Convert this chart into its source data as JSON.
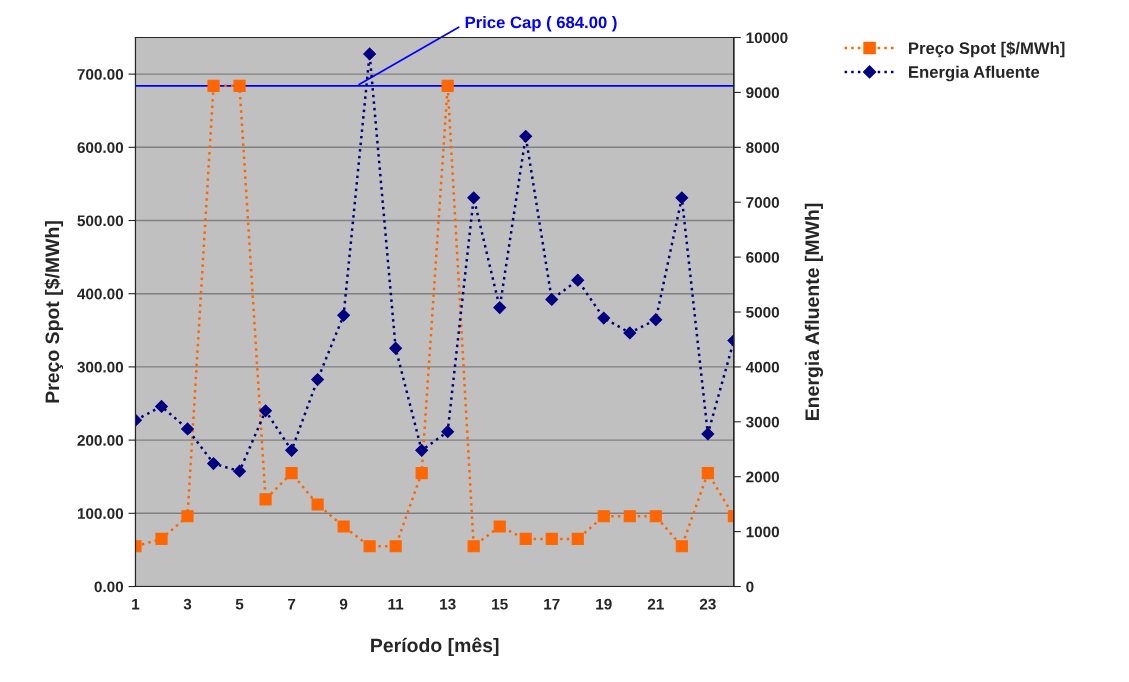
{
  "chart_data": {
    "type": "line",
    "xlabel": "Período [mês]",
    "ylabel": "Preço Spot [$/MWh]",
    "y2label": "Energia Afluente [MWh]",
    "categories": [
      "1",
      null,
      "3",
      null,
      "5",
      null,
      "7",
      null,
      "9",
      null,
      "11",
      null,
      "13",
      null,
      "15",
      null,
      "17",
      null,
      "19",
      null,
      "21",
      null,
      "23",
      null
    ],
    "series": [
      {
        "name": "Preço Spot [$/MWh]",
        "color": "#ff6600",
        "marker": "square",
        "line_style": "dotted",
        "values": [
          55,
          65,
          96,
          684,
          684,
          119,
          155,
          112,
          82,
          55,
          55,
          155,
          684,
          55,
          82,
          65,
          65,
          65,
          96,
          96,
          96,
          55,
          155,
          96
        ]
      },
      {
        "name": "Energia Afluente",
        "color": "#000080",
        "marker": "diamond",
        "line_style": "dotted",
        "axis": "y2",
        "values": [
          3030,
          3280,
          2870,
          2240,
          2100,
          3200,
          2480,
          3770,
          4940,
          9700,
          4340,
          2480,
          2820,
          7080,
          5080,
          8200,
          5230,
          5580,
          4890,
          4620,
          4860,
          7080,
          2780,
          4480
        ]
      }
    ],
    "ylim": [
      0,
      750
    ],
    "yticks": [
      {
        "value": 0,
        "label": "0.00"
      },
      {
        "value": 100,
        "label": "100.00"
      },
      {
        "value": 200,
        "label": "200.00"
      },
      {
        "value": 300,
        "label": "300.00"
      },
      {
        "value": 400,
        "label": "400.00"
      },
      {
        "value": 500,
        "label": "500.00"
      },
      {
        "value": 600,
        "label": "600.00"
      },
      {
        "value": 700,
        "label": "700.00"
      }
    ],
    "y2lim": [
      0,
      10000
    ],
    "y2ticks": [
      0,
      1000,
      2000,
      3000,
      4000,
      5000,
      6000,
      7000,
      8000,
      9000,
      10000
    ],
    "ref_lines": [
      {
        "axis": "y",
        "value": 684,
        "label": "Price Cap ( 684.00 )",
        "color": "#0000ff",
        "line_style": "solid"
      }
    ],
    "grid": "y",
    "legend": "top right"
  }
}
